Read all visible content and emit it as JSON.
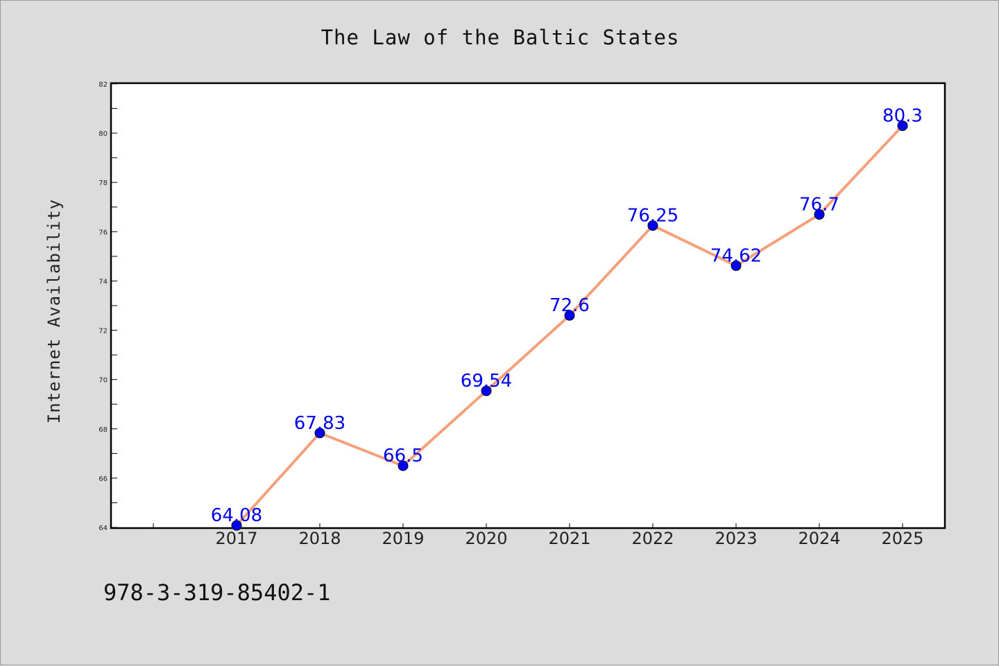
{
  "chart_data": {
    "type": "line",
    "title": "The Law of the Baltic States",
    "xlabel": "",
    "ylabel": "Internet Availability",
    "categories": [
      "2017",
      "2018",
      "2019",
      "2020",
      "2021",
      "2022",
      "2023",
      "2024",
      "2025"
    ],
    "values": [
      64.08,
      67.83,
      66.5,
      69.54,
      72.6,
      76.25,
      74.62,
      76.7,
      80.3
    ],
    "data_labels": [
      "64.08",
      "67.83",
      "66.5",
      "69.54",
      "72.6",
      "76.25",
      "74.62",
      "76.7",
      "80.3"
    ],
    "ylim": [
      64,
      82
    ],
    "yticks": [
      "64",
      "66",
      "68",
      "70",
      "72",
      "74",
      "76",
      "78",
      "80",
      "82"
    ],
    "grid": false,
    "legend": "none",
    "line_color": "#f4a07a",
    "marker_color": "#0000ee",
    "label_color": "#0000ee"
  },
  "footer": {
    "isbn": "978-3-319-85402-1"
  }
}
